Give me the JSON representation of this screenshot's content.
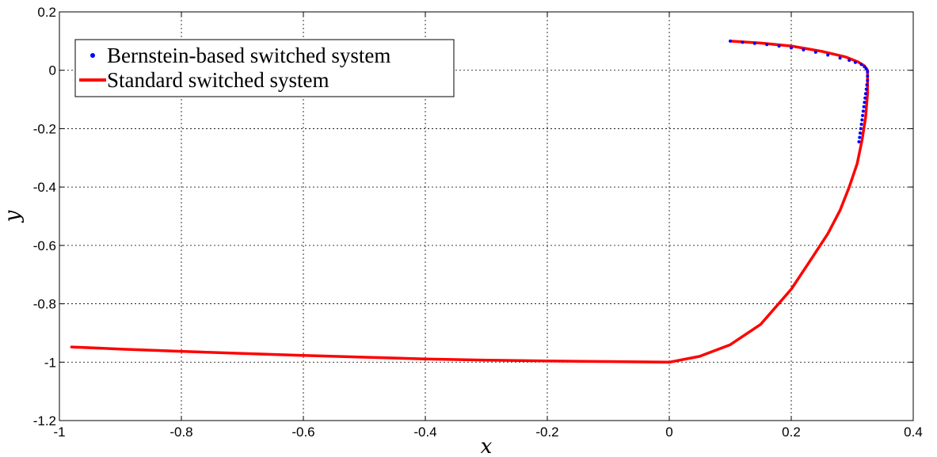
{
  "chart_data": {
    "type": "line",
    "xlabel": "x",
    "ylabel": "y",
    "xlim": [
      -1,
      0.4
    ],
    "ylim": [
      -1.2,
      0.2
    ],
    "xticks": [
      -1,
      -0.8,
      -0.6,
      -0.4,
      -0.2,
      0,
      0.2,
      0.4
    ],
    "yticks": [
      -1.2,
      -1,
      -0.8,
      -0.6,
      -0.4,
      -0.2,
      0,
      0.2
    ],
    "xtick_labels": [
      "-1",
      "-0.8",
      "-0.6",
      "-0.4",
      "-0.2",
      "0",
      "0.2",
      "0.4"
    ],
    "ytick_labels": [
      "-1.2",
      "-1",
      "-0.8",
      "-0.6",
      "-0.4",
      "-0.2",
      "0",
      "0.2"
    ],
    "grid": true,
    "legend_position": "top-left",
    "series": [
      {
        "name": "Bernstein-based switched system",
        "style": "dots",
        "color": "#0000ff",
        "x": [
          0.1,
          0.12,
          0.14,
          0.16,
          0.18,
          0.2,
          0.22,
          0.24,
          0.26,
          0.28,
          0.295,
          0.305,
          0.315,
          0.32,
          0.323,
          0.325,
          0.325,
          0.325,
          0.324,
          0.323,
          0.322,
          0.321,
          0.32,
          0.319,
          0.318,
          0.317,
          0.316,
          0.315,
          0.314,
          0.313,
          0.312,
          0.311
        ],
        "y": [
          0.1,
          0.096,
          0.092,
          0.088,
          0.083,
          0.077,
          0.07,
          0.062,
          0.052,
          0.042,
          0.034,
          0.027,
          0.02,
          0.012,
          0.005,
          -0.005,
          -0.02,
          -0.035,
          -0.05,
          -0.065,
          -0.08,
          -0.095,
          -0.11,
          -0.125,
          -0.14,
          -0.155,
          -0.17,
          -0.185,
          -0.2,
          -0.215,
          -0.23,
          -0.245
        ]
      },
      {
        "name": "Standard switched system",
        "style": "line",
        "color": "#ff0000",
        "x": [
          0.1,
          0.15,
          0.2,
          0.25,
          0.29,
          0.31,
          0.32,
          0.325,
          0.325,
          0.322,
          0.316,
          0.308,
          0.295,
          0.28,
          0.26,
          0.235,
          0.2,
          0.15,
          0.1,
          0.05,
          0.0,
          -0.05,
          -0.1,
          -0.2,
          -0.3,
          -0.4,
          -0.5,
          -0.6,
          -0.7,
          -0.8,
          -0.9,
          -0.98
        ],
        "y": [
          0.1,
          0.093,
          0.083,
          0.065,
          0.045,
          0.028,
          0.015,
          0.0,
          -0.08,
          -0.16,
          -0.24,
          -0.32,
          -0.4,
          -0.48,
          -0.56,
          -0.64,
          -0.75,
          -0.87,
          -0.94,
          -0.98,
          -1.0,
          -0.999,
          -0.998,
          -0.996,
          -0.993,
          -0.989,
          -0.983,
          -0.977,
          -0.97,
          -0.963,
          -0.955,
          -0.948
        ]
      }
    ]
  }
}
